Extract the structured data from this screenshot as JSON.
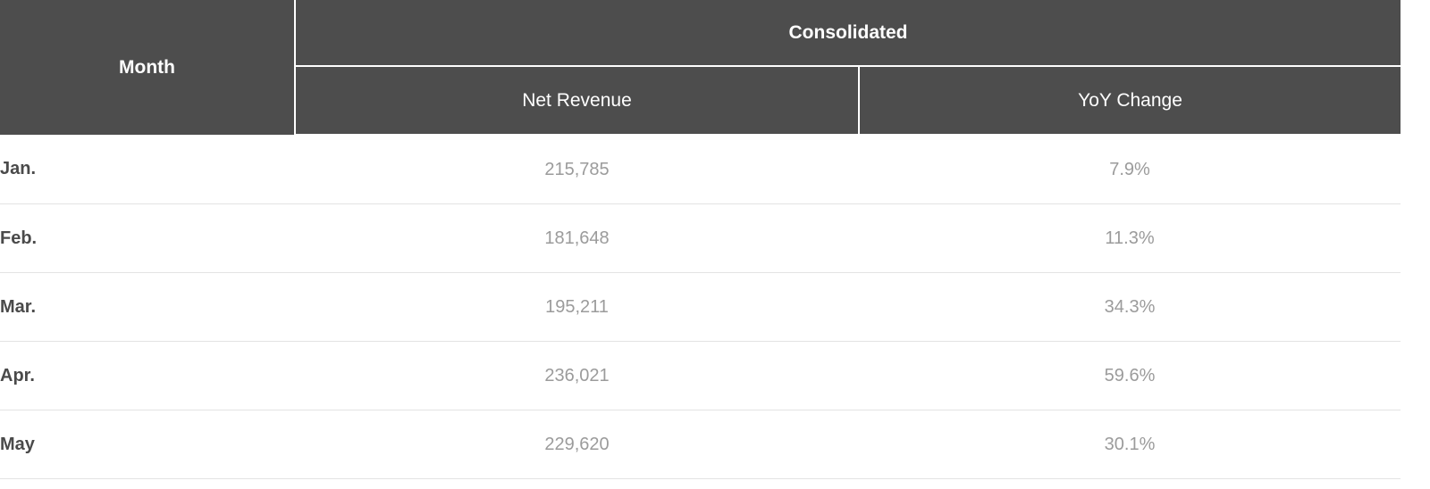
{
  "table": {
    "headers": {
      "month": "Month",
      "group": "Consolidated",
      "net_revenue": "Net Revenue",
      "yoy_change": "YoY Change"
    },
    "rows": [
      {
        "month": "Jan.",
        "net_revenue": "215,785",
        "yoy_change": "7.9%"
      },
      {
        "month": "Feb.",
        "net_revenue": "181,648",
        "yoy_change": "11.3%"
      },
      {
        "month": "Mar.",
        "net_revenue": "195,211",
        "yoy_change": "34.3%"
      },
      {
        "month": "Apr.",
        "net_revenue": "236,021",
        "yoy_change": "59.6%"
      },
      {
        "month": "May",
        "net_revenue": "229,620",
        "yoy_change": "30.1%"
      }
    ]
  },
  "colors": {
    "header_background": "#4d4d4d",
    "header_text": "#ffffff",
    "month_text": "#4a4a4a",
    "value_text": "#9b9b9b",
    "row_divider": "#e3e3e3"
  }
}
